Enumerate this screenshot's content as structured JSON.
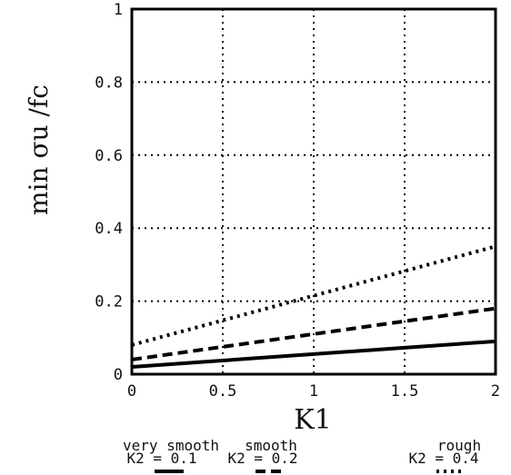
{
  "chart_data": {
    "type": "line",
    "xlabel": "K1",
    "ylabel": "min σu /fc",
    "xlim": [
      0,
      2
    ],
    "ylim": [
      0,
      1
    ],
    "xticks": [
      {
        "v": 0,
        "label": "0"
      },
      {
        "v": 0.5,
        "label": "0.5"
      },
      {
        "v": 1,
        "label": "1"
      },
      {
        "v": 1.5,
        "label": "1.5"
      },
      {
        "v": 2,
        "label": "2"
      }
    ],
    "yticks": [
      {
        "v": 0,
        "label": "0"
      },
      {
        "v": 0.2,
        "label": "0.2"
      },
      {
        "v": 0.4,
        "label": "0.4"
      },
      {
        "v": 0.6,
        "label": "0.6"
      },
      {
        "v": 0.8,
        "label": "0.8"
      },
      {
        "v": 1,
        "label": "1"
      }
    ],
    "grid": "dotted",
    "legend_position": "bottom",
    "series": [
      {
        "name": "very smooth",
        "k2_label": "K2 = 0.1",
        "style": "solid",
        "x": [
          0,
          2
        ],
        "y": [
          0.02,
          0.09
        ]
      },
      {
        "name": "smooth",
        "k2_label": "K2 = 0.2",
        "style": "dashed",
        "x": [
          0,
          2
        ],
        "y": [
          0.04,
          0.18
        ]
      },
      {
        "name": "rough",
        "k2_label": "K2 = 0.4",
        "style": "dotted",
        "x": [
          0,
          2
        ],
        "y": [
          0.08,
          0.35
        ]
      }
    ]
  }
}
